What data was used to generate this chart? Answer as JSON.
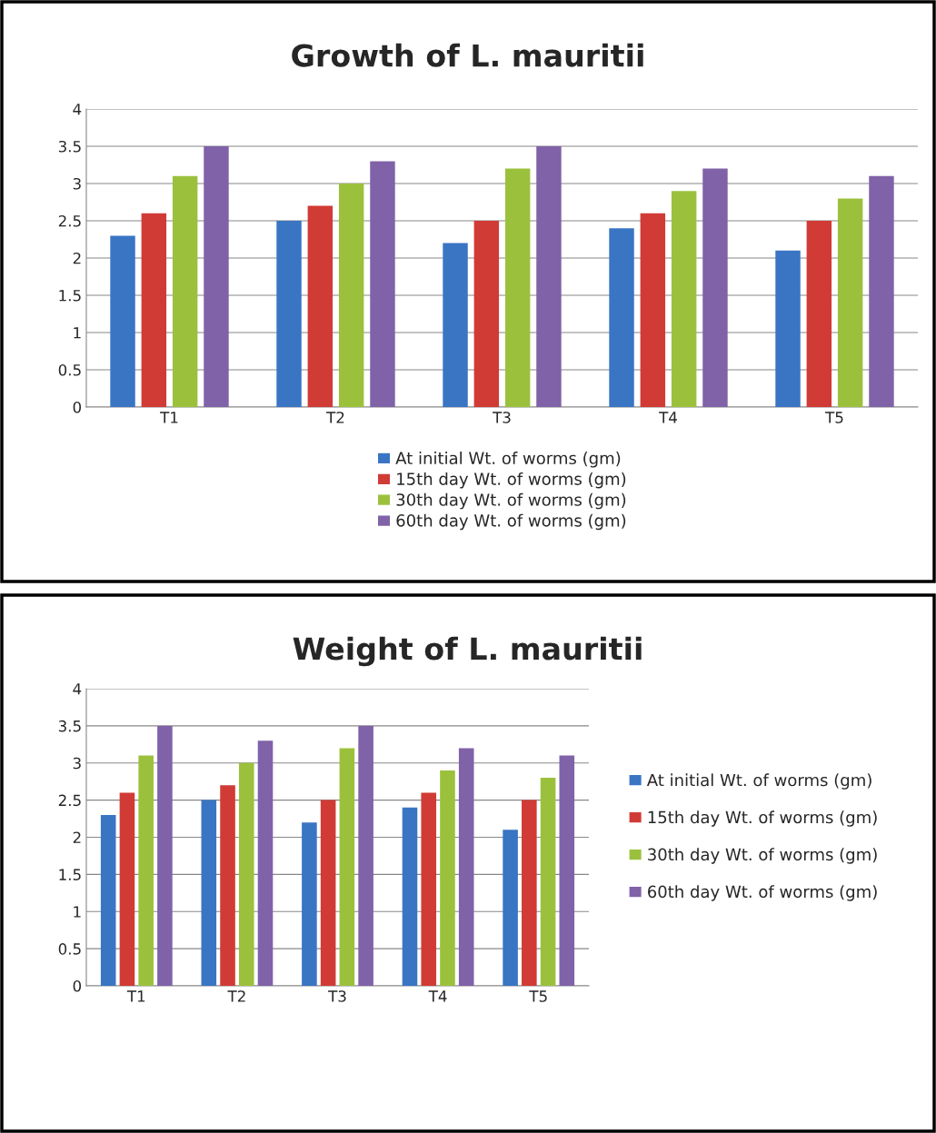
{
  "chart_data": [
    {
      "type": "bar",
      "title": "Growth of L. mauritii",
      "categories": [
        "T1",
        "T2",
        "T3",
        "T4",
        "T5"
      ],
      "series": [
        {
          "name": "At initial Wt. of worms (gm)",
          "color": "#3a75c4",
          "values": [
            2.3,
            2.5,
            2.2,
            2.4,
            2.1
          ]
        },
        {
          "name": "15th day Wt. of worms (gm)",
          "color": "#d13b35",
          "values": [
            2.6,
            2.7,
            2.5,
            2.6,
            2.5
          ]
        },
        {
          "name": "30th day Wt. of worms (gm)",
          "color": "#9bc13c",
          "values": [
            3.1,
            3.0,
            3.2,
            2.9,
            2.8
          ]
        },
        {
          "name": "60th day Wt. of worms (gm)",
          "color": "#8062a8",
          "values": [
            3.5,
            3.3,
            3.5,
            3.2,
            3.1
          ]
        }
      ],
      "ylim": [
        0,
        4
      ],
      "yticks": [
        0,
        0.5,
        1,
        1.5,
        2,
        2.5,
        3,
        3.5,
        4
      ],
      "grid": "y",
      "legend": "bottom"
    },
    {
      "type": "bar",
      "title": "Weight of L. mauritii",
      "categories": [
        "T1",
        "T2",
        "T3",
        "T4",
        "T5"
      ],
      "series": [
        {
          "name": "At initial Wt. of worms (gm)",
          "color": "#3a75c4",
          "values": [
            2.3,
            2.5,
            2.2,
            2.4,
            2.1
          ]
        },
        {
          "name": "15th day Wt. of worms (gm)",
          "color": "#d13b35",
          "values": [
            2.6,
            2.7,
            2.5,
            2.6,
            2.5
          ]
        },
        {
          "name": "30th day Wt. of worms (gm)",
          "color": "#9bc13c",
          "values": [
            3.1,
            3.0,
            3.2,
            2.9,
            2.8
          ]
        },
        {
          "name": "60th day Wt. of worms (gm)",
          "color": "#8062a8",
          "values": [
            3.5,
            3.3,
            3.5,
            3.2,
            3.1
          ]
        }
      ],
      "ylim": [
        0,
        4
      ],
      "yticks": [
        0,
        0.5,
        1,
        1.5,
        2,
        2.5,
        3,
        3.5,
        4
      ],
      "grid": "y",
      "legend": "right"
    }
  ]
}
